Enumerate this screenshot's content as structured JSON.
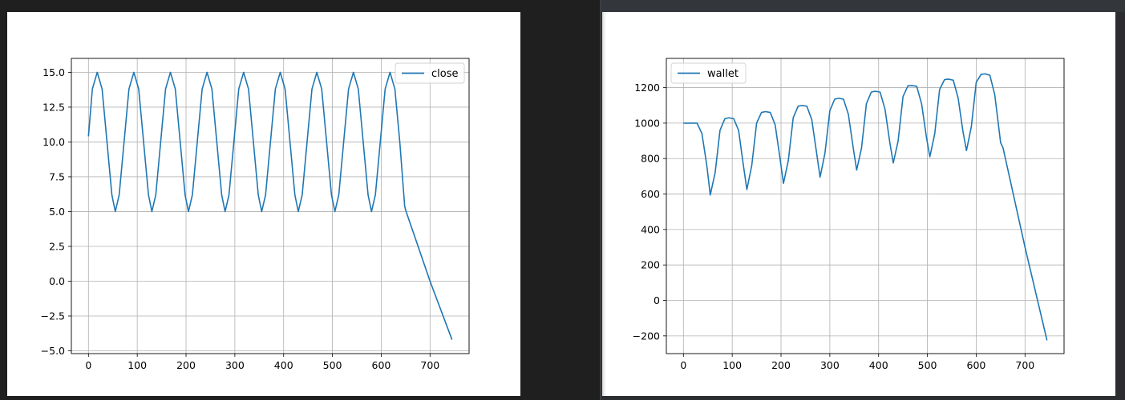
{
  "chart_data": [
    {
      "type": "line",
      "title": "",
      "xlabel": "",
      "ylabel": "",
      "xlim": [
        -35,
        780
      ],
      "ylim": [
        -5.2,
        16.0
      ],
      "xticks": [
        0,
        100,
        200,
        300,
        400,
        500,
        600,
        700
      ],
      "yticks": [
        -5.0,
        -2.5,
        0.0,
        2.5,
        5.0,
        7.5,
        10.0,
        12.5,
        15.0
      ],
      "ytick_labels": [
        "−5.0",
        "−2.5",
        "0.0",
        "2.5",
        "5.0",
        "7.5",
        "10.0",
        "12.5",
        "15.0"
      ],
      "xtick_labels": [
        "0",
        "100",
        "200",
        "300",
        "400",
        "500",
        "600",
        "700"
      ],
      "grid": true,
      "legend": "upper right",
      "color": "#1f77b4",
      "series": [
        {
          "name": "close",
          "x": [
            0,
            8,
            18,
            28,
            38,
            48,
            55,
            63,
            73,
            83,
            93,
            103,
            113,
            123,
            130,
            138,
            148,
            158,
            168,
            178,
            188,
            198,
            205,
            213,
            223,
            233,
            243,
            253,
            263,
            273,
            280,
            288,
            298,
            308,
            318,
            328,
            338,
            348,
            355,
            363,
            373,
            383,
            393,
            403,
            413,
            423,
            430,
            438,
            448,
            458,
            468,
            478,
            488,
            498,
            505,
            513,
            523,
            533,
            543,
            553,
            563,
            573,
            580,
            588,
            598,
            608,
            618,
            628,
            638,
            648,
            650,
            700,
            745
          ],
          "y": [
            10.4,
            13.8,
            15.0,
            13.8,
            10.0,
            6.2,
            5.0,
            6.2,
            10.0,
            13.8,
            15.0,
            13.8,
            10.0,
            6.2,
            5.0,
            6.2,
            10.0,
            13.8,
            15.0,
            13.8,
            10.0,
            6.2,
            5.0,
            6.2,
            10.0,
            13.8,
            15.0,
            13.8,
            10.0,
            6.2,
            5.0,
            6.2,
            10.0,
            13.8,
            15.0,
            13.8,
            10.0,
            6.2,
            5.0,
            6.2,
            10.0,
            13.8,
            15.0,
            13.8,
            10.0,
            6.2,
            5.0,
            6.2,
            10.0,
            13.8,
            15.0,
            13.8,
            10.0,
            6.2,
            5.0,
            6.2,
            10.0,
            13.8,
            15.0,
            13.8,
            10.0,
            6.2,
            5.0,
            6.2,
            10.0,
            13.8,
            15.0,
            13.8,
            10.0,
            5.4,
            5.1,
            0.0,
            -4.2
          ]
        }
      ]
    },
    {
      "type": "line",
      "title": "",
      "xlabel": "",
      "ylabel": "",
      "xlim": [
        -35,
        780
      ],
      "ylim": [
        -300,
        1365
      ],
      "xticks": [
        0,
        100,
        200,
        300,
        400,
        500,
        600,
        700
      ],
      "yticks": [
        -200,
        0,
        200,
        400,
        600,
        800,
        1000,
        1200
      ],
      "ytick_labels": [
        "−200",
        "0",
        "200",
        "400",
        "600",
        "800",
        "1000",
        "1200"
      ],
      "xtick_labels": [
        "0",
        "100",
        "200",
        "300",
        "400",
        "500",
        "600",
        "700"
      ],
      "grid": true,
      "legend": "upper left",
      "color": "#1f77b4",
      "series": [
        {
          "name": "wallet",
          "x": [
            0,
            28,
            38,
            48,
            55,
            65,
            75,
            85,
            93,
            103,
            113,
            123,
            130,
            140,
            150,
            160,
            168,
            178,
            188,
            198,
            205,
            215,
            225,
            235,
            243,
            253,
            263,
            273,
            280,
            290,
            300,
            310,
            318,
            328,
            338,
            348,
            355,
            365,
            375,
            385,
            393,
            403,
            413,
            423,
            430,
            440,
            450,
            460,
            468,
            478,
            488,
            498,
            505,
            515,
            525,
            535,
            543,
            553,
            563,
            573,
            580,
            590,
            600,
            610,
            618,
            628,
            638,
            650,
            655,
            700,
            745
          ],
          "y": [
            1000,
            1000,
            940,
            760,
            595,
            720,
            960,
            1025,
            1030,
            1025,
            960,
            760,
            625,
            760,
            1000,
            1060,
            1065,
            1060,
            990,
            800,
            660,
            790,
            1030,
            1095,
            1100,
            1095,
            1020,
            830,
            695,
            830,
            1070,
            1135,
            1140,
            1135,
            1050,
            860,
            735,
            860,
            1110,
            1175,
            1180,
            1175,
            1080,
            890,
            775,
            900,
            1150,
            1210,
            1212,
            1208,
            1110,
            920,
            810,
            940,
            1190,
            1245,
            1248,
            1242,
            1140,
            950,
            845,
            980,
            1230,
            1275,
            1278,
            1270,
            1160,
            890,
            860,
            300,
            -225
          ]
        }
      ]
    }
  ]
}
